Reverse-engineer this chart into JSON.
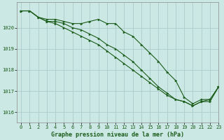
{
  "title": "Graphe pression niveau de la mer (hPa)",
  "background_color": "#cce8e4",
  "plot_bg_color": "#cce8e4",
  "grid_color": "#aacccc",
  "line_color": "#1a5c1a",
  "xlim": [
    -0.5,
    23
  ],
  "ylim": [
    1015.5,
    1021.2
  ],
  "yticks": [
    1016,
    1017,
    1018,
    1019,
    1020
  ],
  "xticks": [
    0,
    1,
    2,
    3,
    4,
    5,
    6,
    7,
    8,
    9,
    10,
    11,
    12,
    13,
    14,
    15,
    16,
    17,
    18,
    19,
    20,
    21,
    22,
    23
  ],
  "series1": [
    1020.8,
    1020.8,
    1020.5,
    1020.4,
    1020.4,
    1020.3,
    1020.2,
    1020.2,
    1020.3,
    1020.4,
    1020.2,
    1020.2,
    1019.8,
    1019.6,
    1019.2,
    1018.8,
    1018.4,
    1017.9,
    1017.5,
    1016.7,
    1016.4,
    1016.6,
    1016.6,
    1017.2
  ],
  "series2": [
    1020.8,
    1020.8,
    1020.5,
    1020.3,
    1020.2,
    1020.0,
    1019.8,
    1019.6,
    1019.4,
    1019.2,
    1018.9,
    1018.6,
    1018.3,
    1018.0,
    1017.7,
    1017.4,
    1017.1,
    1016.8,
    1016.6,
    1016.5,
    1016.3,
    1016.5,
    1016.5,
    1017.2
  ],
  "series3": [
    1020.8,
    1020.8,
    1020.5,
    1020.3,
    1020.3,
    1020.2,
    1020.0,
    1019.9,
    1019.7,
    1019.5,
    1019.2,
    1019.0,
    1018.7,
    1018.4,
    1018.0,
    1017.6,
    1017.2,
    1016.9,
    1016.6,
    1016.5,
    1016.3,
    1016.5,
    1016.6,
    1017.2
  ],
  "title_fontsize": 6,
  "tick_fontsize": 5
}
